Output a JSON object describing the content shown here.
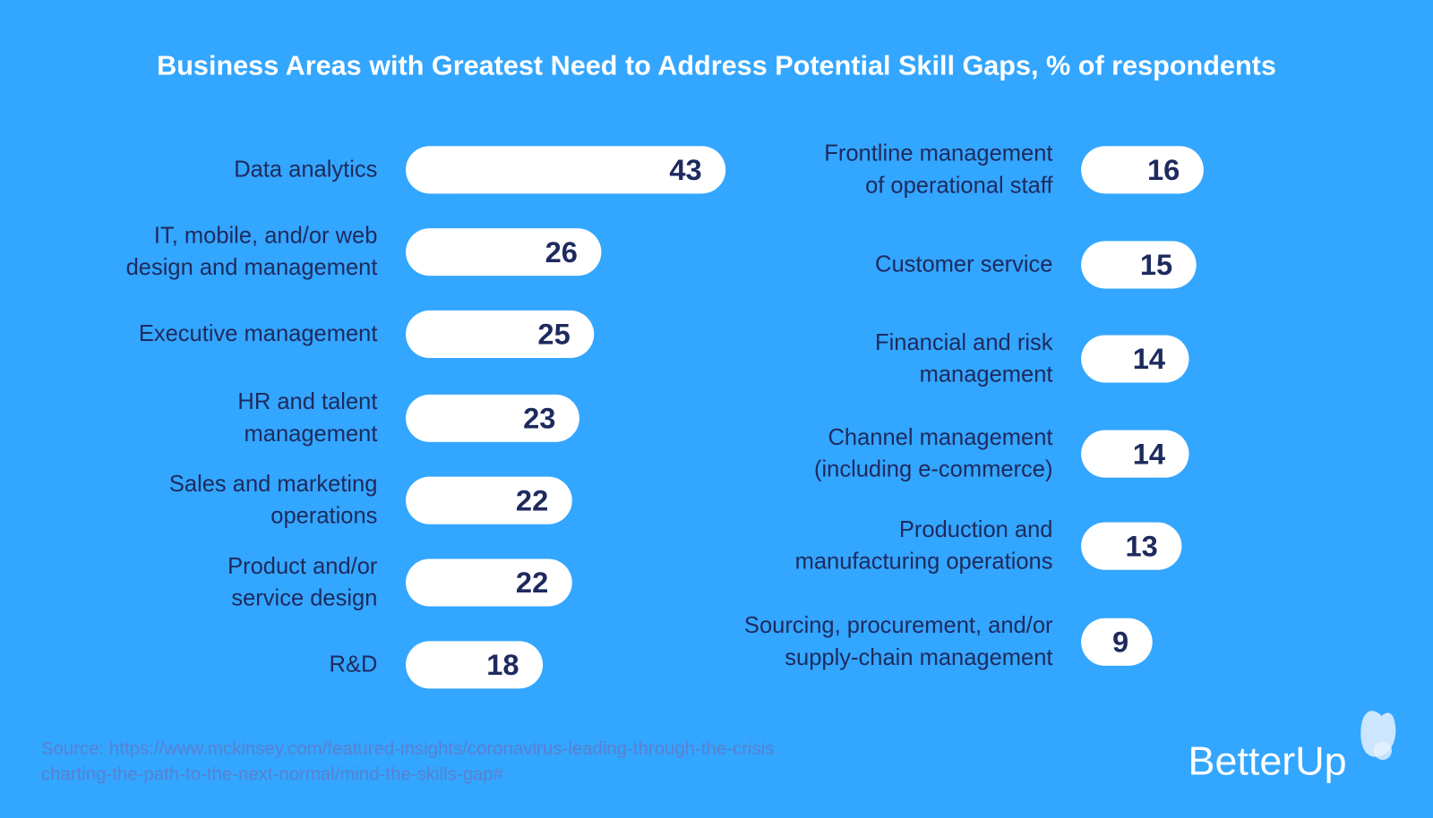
{
  "chart_data": {
    "type": "bar",
    "title": "Business Areas with Greatest Need to Address Potential Skill Gaps, % of respondents",
    "orientation": "horizontal",
    "left_column": [
      {
        "category": "Data analytics",
        "value": 43
      },
      {
        "category": "IT, mobile, and/or web design and management",
        "value": 26
      },
      {
        "category": "Executive management",
        "value": 25
      },
      {
        "category": "HR and talent management",
        "value": 23
      },
      {
        "category": "Sales and marketing operations",
        "value": 22
      },
      {
        "category": "Product and/or service design",
        "value": 22
      },
      {
        "category": "R&D",
        "value": 18
      }
    ],
    "right_column": [
      {
        "category": "Frontline management of operational staff",
        "value": 16
      },
      {
        "category": "Customer service",
        "value": 15
      },
      {
        "category": "Financial and risk management",
        "value": 14
      },
      {
        "category": "Channel management (including e-commerce)",
        "value": 14
      },
      {
        "category": "Production and manufacturing operations",
        "value": 13
      },
      {
        "category": "Sourcing, procurement, and/or supply-chain management",
        "value": 9
      }
    ],
    "colors": {
      "background": "#33a6ff",
      "bar": "#ffffff",
      "text": "#1e2a5e"
    }
  },
  "labels_display": {
    "left": [
      [
        "Data analytics"
      ],
      [
        "IT, mobile, and/or web",
        "design and management"
      ],
      [
        "Executive management"
      ],
      [
        "HR and talent",
        "management"
      ],
      [
        "Sales and marketing",
        "operations"
      ],
      [
        "Product and/or",
        "service design"
      ],
      [
        "R&D"
      ]
    ],
    "right": [
      [
        "Frontline management",
        "of operational staff"
      ],
      [
        "Customer service"
      ],
      [
        "Financial and risk",
        "management"
      ],
      [
        "Channel management",
        "(including e-commerce)"
      ],
      [
        "Production and",
        "manufacturing operations"
      ],
      [
        "Sourcing, procurement, and/or",
        "supply-chain management"
      ]
    ]
  },
  "source": {
    "line1": "Source: https://www.mckinsey.com/featured-insights/coronavirus-leading-through-the-crisis",
    "line2": "charting-the-path-to-the-next-normal/mind-the-skills-gap#"
  },
  "logo": {
    "text": "BetterUp"
  }
}
